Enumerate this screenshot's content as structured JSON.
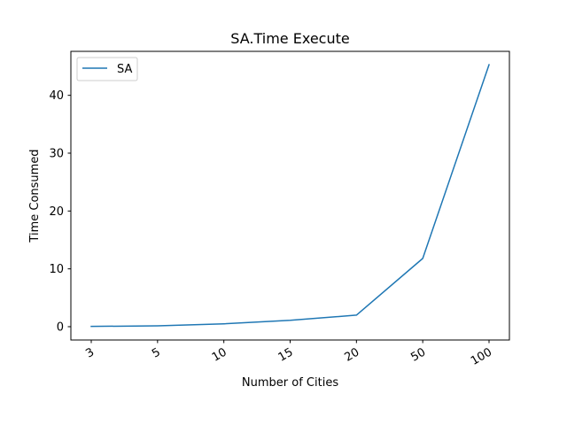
{
  "chart_data": {
    "type": "line",
    "title": "SA.Time Execute",
    "xlabel": "Number of Cities",
    "ylabel": "Time Consumed",
    "categories": [
      "3",
      "5",
      "10",
      "15",
      "20",
      "50",
      "100"
    ],
    "series": [
      {
        "name": "SA",
        "values": [
          0.05,
          0.15,
          0.5,
          1.1,
          2.0,
          11.8,
          45.3
        ],
        "color": "#1f77b4"
      }
    ],
    "ylim": [
      -2.3,
      47.6
    ],
    "yticks": [
      0,
      10,
      20,
      30,
      40
    ],
    "grid": false,
    "legend": "top-left",
    "xtick_rotation": -30
  }
}
